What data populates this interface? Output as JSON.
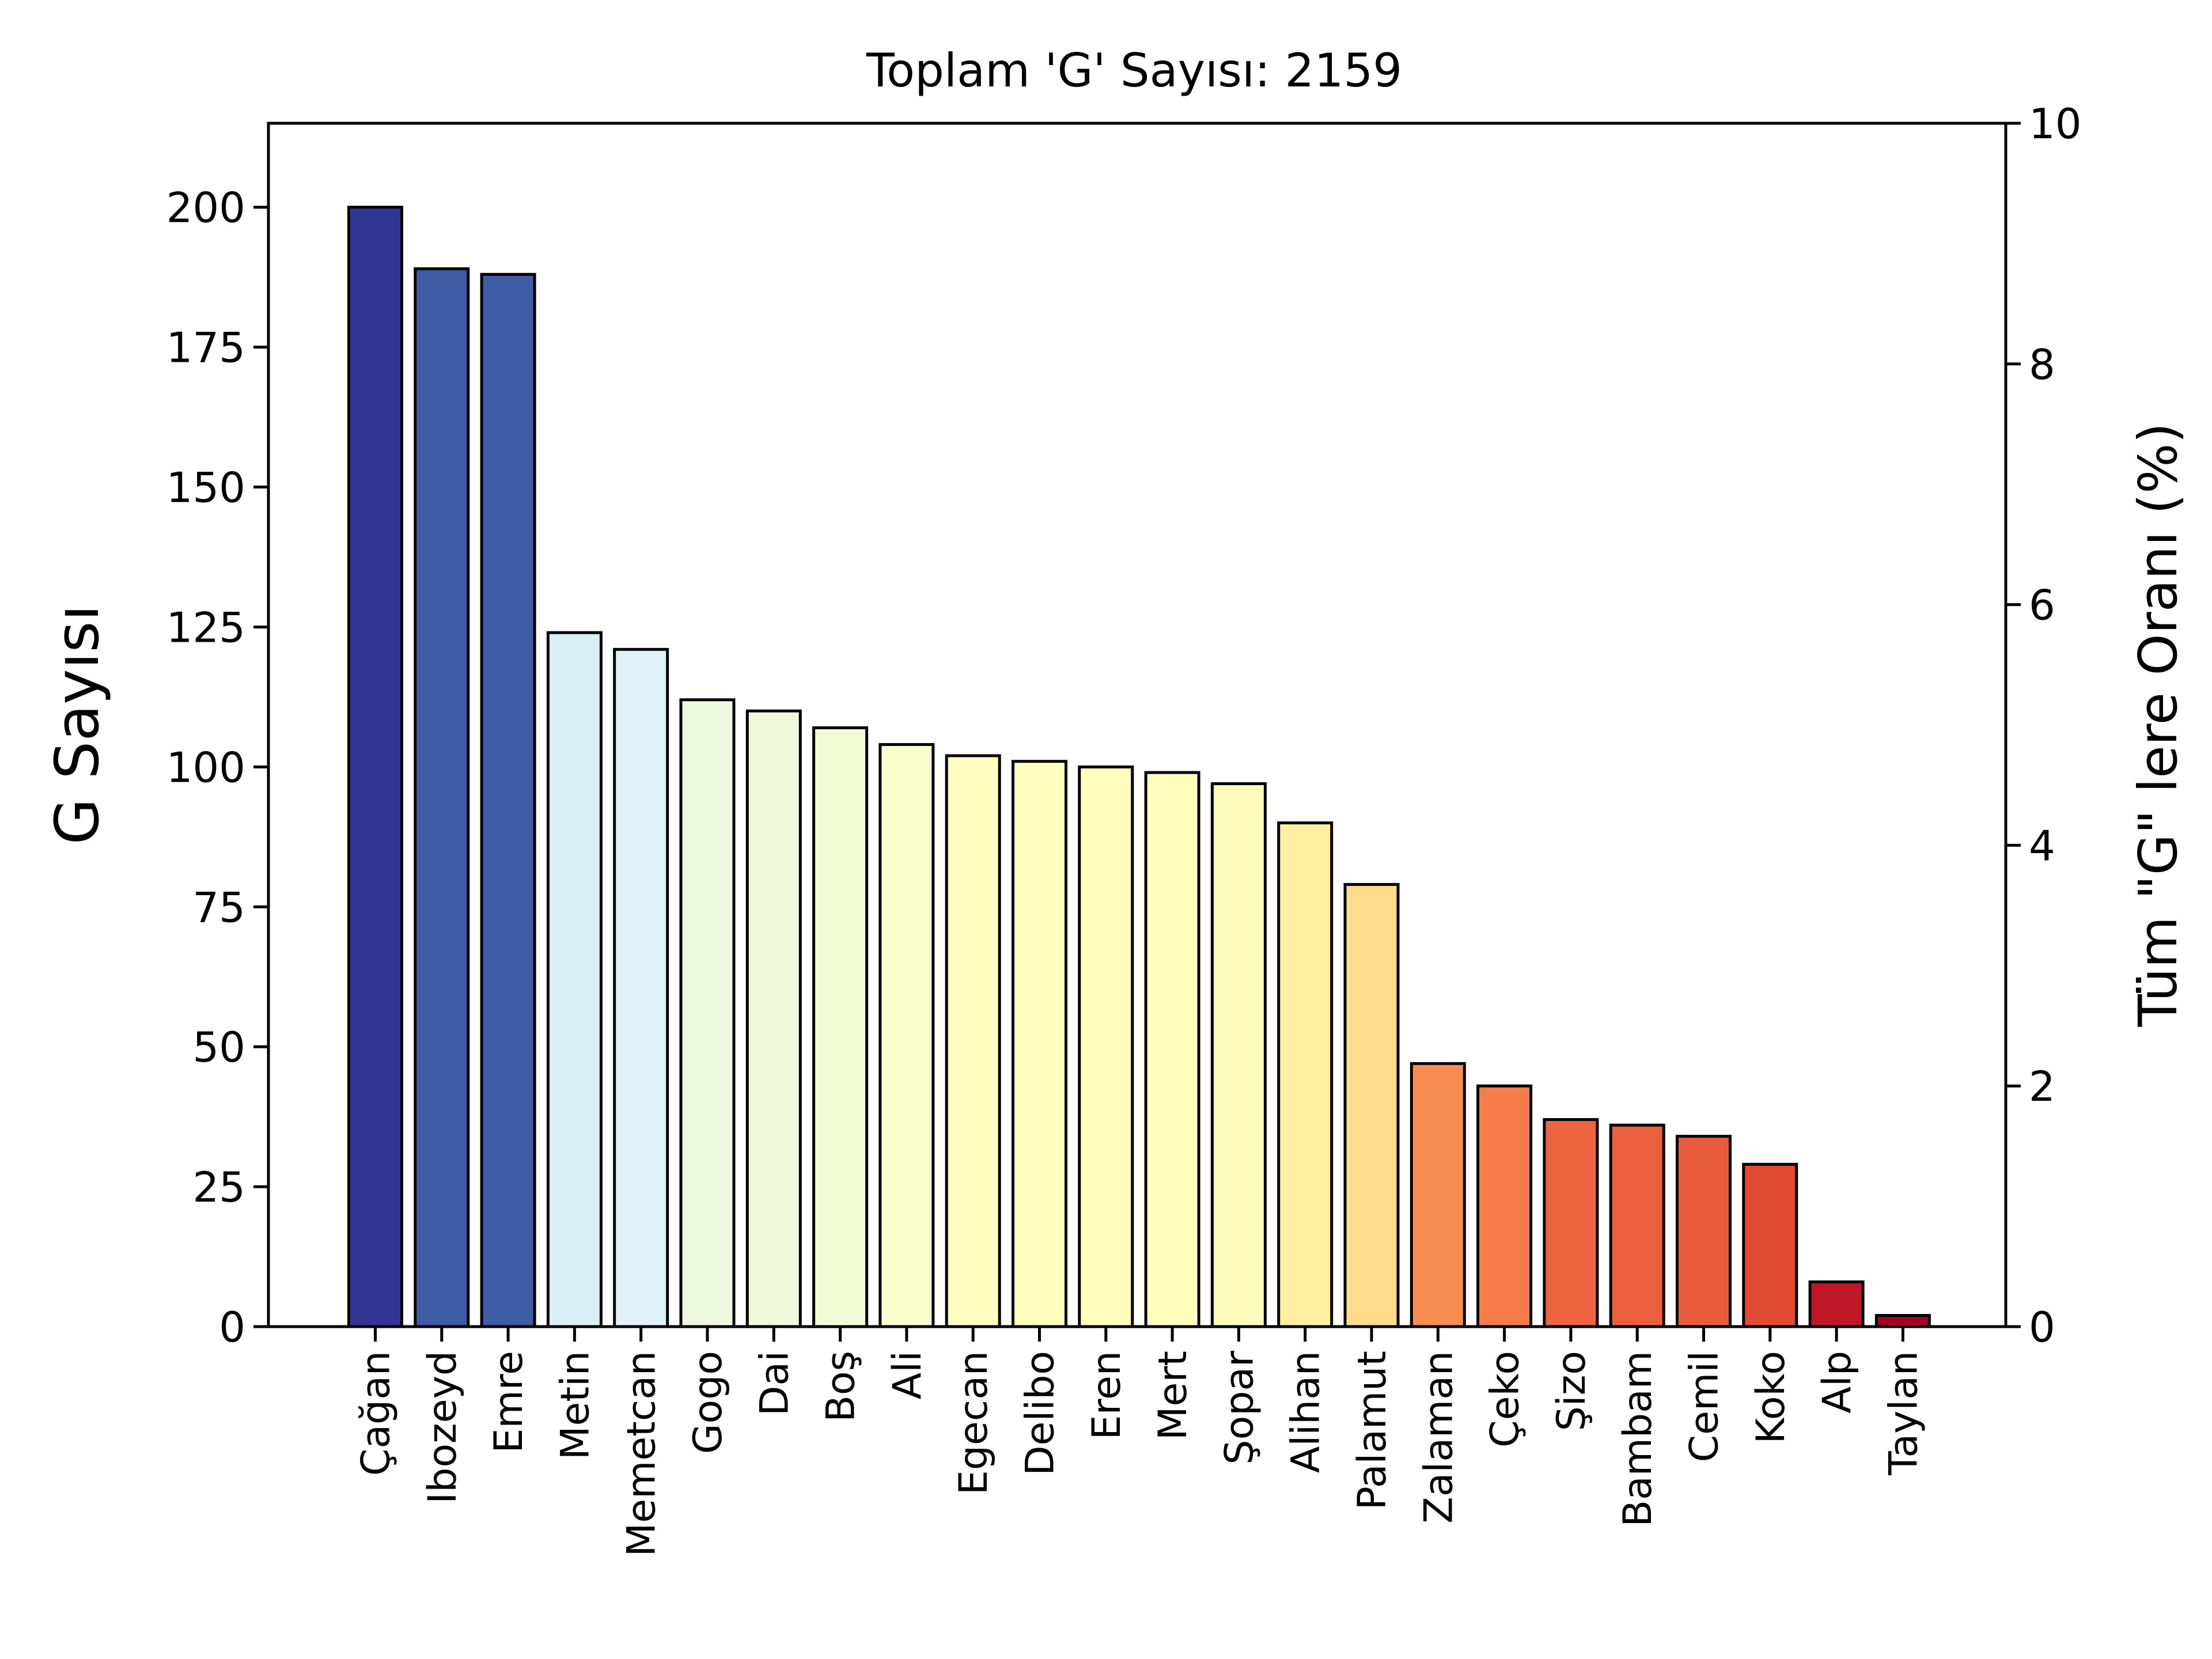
{
  "chart_data": {
    "type": "bar",
    "title": "Toplam 'G' Sayısı: 2159",
    "ylabel": "G Sayısı",
    "ylabel_right": "Tüm \"G\" lere Oranı (%)",
    "ylim": [
      0,
      215
    ],
    "ylim_right": [
      0,
      10
    ],
    "yticks": [
      0,
      25,
      50,
      75,
      100,
      125,
      150,
      175,
      200
    ],
    "yticks_right": [
      0,
      2,
      4,
      6,
      8,
      10
    ],
    "grid": false,
    "categories": [
      "Çağan",
      "Ibozeyd",
      "Emre",
      "Metin",
      "Memetcan",
      "Gogo",
      "Dai",
      "Boş",
      "Ali",
      "Egecan",
      "Delibo",
      "Eren",
      "Mert",
      "Şopar",
      "Alihan",
      "Palamut",
      "Zalaman",
      "Çeko",
      "Şizo",
      "Bambam",
      "Cemil",
      "Koko",
      "Alp",
      "Taylan"
    ],
    "values": [
      200,
      189,
      188,
      124,
      121,
      112,
      110,
      107,
      104,
      102,
      101,
      100,
      99,
      97,
      90,
      79,
      47,
      43,
      37,
      36,
      34,
      29,
      8,
      2
    ],
    "colors": [
      "#313695",
      "#3e5ca6",
      "#3e5ca6",
      "#d8eff6",
      "#dff2f7",
      "#edf8df",
      "#f0f9db",
      "#f2fad6",
      "#f9fccb",
      "#fefec0",
      "#fefebe",
      "#fefebe",
      "#fefebd",
      "#fefcba",
      "#feeea2",
      "#fedc8c",
      "#f88d52",
      "#f67c4a",
      "#ee6441",
      "#ec5f3e",
      "#e85b3b",
      "#e24b33",
      "#bf1727",
      "#a50026"
    ]
  }
}
